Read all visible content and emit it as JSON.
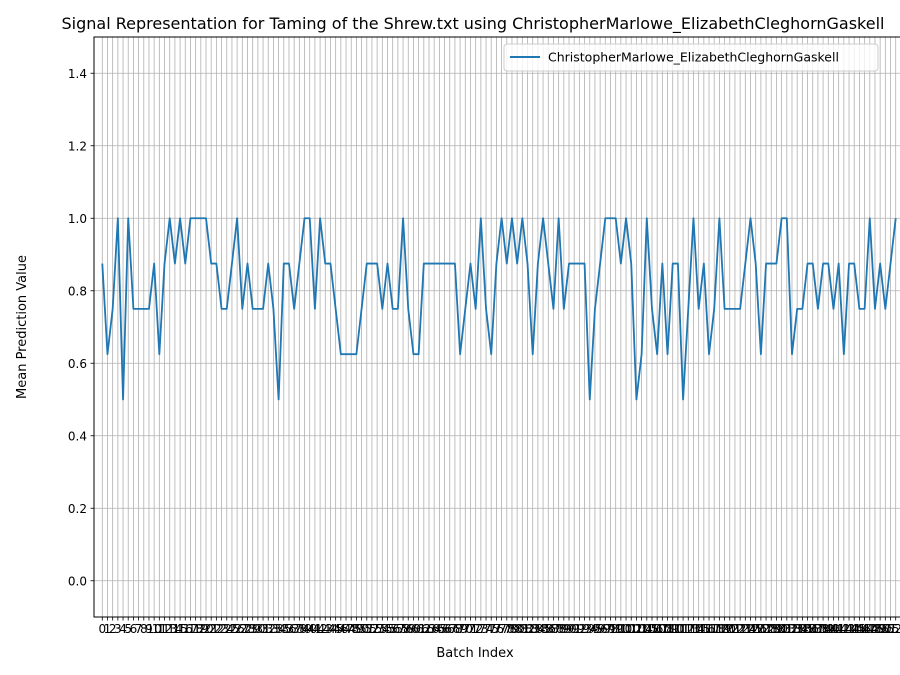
{
  "chart_data": {
    "type": "line",
    "title": "Signal Representation for Taming of the Shrew.txt using ChristopherMarlowe_ElizabethCleghornGaskell",
    "xlabel": "Batch Index",
    "ylabel": "Mean Prediction Value",
    "ylim": [
      -0.1,
      1.5
    ],
    "yticks": [
      0.0,
      0.2,
      0.4,
      0.6,
      0.8,
      1.0,
      1.2,
      1.4
    ],
    "xlim": [
      -1.6,
      154.6
    ],
    "x_range": [
      0,
      153
    ],
    "grid": true,
    "legend_position": "top-right",
    "series": [
      {
        "name": "ChristopherMarlowe_ElizabethCleghornGaskell",
        "color": "#1f77b4",
        "values": [
          0.875,
          0.625,
          0.75,
          1.0,
          0.5,
          1.0,
          0.75,
          0.75,
          0.75,
          0.75,
          0.875,
          0.625,
          0.875,
          1.0,
          0.875,
          1.0,
          0.875,
          1.0,
          1.0,
          1.0,
          1.0,
          0.875,
          0.875,
          0.75,
          0.75,
          0.875,
          1.0,
          0.75,
          0.875,
          0.75,
          0.75,
          0.75,
          0.875,
          0.75,
          0.5,
          0.875,
          0.875,
          0.75,
          0.875,
          1.0,
          1.0,
          0.75,
          1.0,
          0.875,
          0.875,
          0.75,
          0.625,
          0.625,
          0.625,
          0.625,
          0.75,
          0.875,
          0.875,
          0.875,
          0.75,
          0.875,
          0.75,
          0.75,
          1.0,
          0.75,
          0.625,
          0.625,
          0.875,
          0.875,
          0.875,
          0.875,
          0.875,
          0.875,
          0.875,
          0.625,
          0.75,
          0.875,
          0.75,
          1.0,
          0.75,
          0.625,
          0.875,
          1.0,
          0.875,
          1.0,
          0.875,
          1.0,
          0.875,
          0.625,
          0.875,
          1.0,
          0.875,
          0.75,
          1.0,
          0.75,
          0.875,
          0.875,
          0.875,
          0.875,
          0.5,
          0.75,
          0.875,
          1.0,
          1.0,
          1.0,
          0.875,
          1.0,
          0.875,
          0.5,
          0.625,
          1.0,
          0.75,
          0.625,
          0.875,
          0.625,
          0.875,
          0.875,
          0.5,
          0.75,
          1.0,
          0.75,
          0.875,
          0.625,
          0.75,
          1.0,
          0.75,
          0.75,
          0.75,
          0.75,
          0.875,
          1.0,
          0.875,
          0.625,
          0.875,
          0.875,
          0.875,
          1.0,
          1.0,
          0.625,
          0.75,
          0.75,
          0.875,
          0.875,
          0.75,
          0.875,
          0.875,
          0.75,
          0.875,
          0.625,
          0.875,
          0.875,
          0.75,
          0.75,
          1.0,
          0.75,
          0.875,
          0.75,
          0.875,
          1.0
        ]
      }
    ]
  }
}
